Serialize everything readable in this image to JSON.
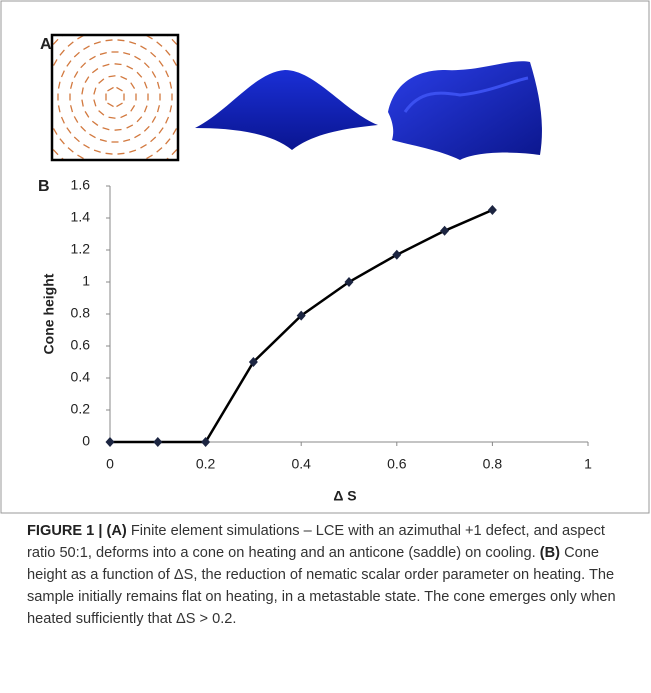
{
  "panels": {
    "a": {
      "label": "A"
    },
    "b": {
      "label": "B"
    }
  },
  "chart_data": {
    "type": "line",
    "x": [
      0,
      0.1,
      0.2,
      0.3,
      0.4,
      0.5,
      0.6,
      0.7,
      0.8
    ],
    "series": [
      {
        "name": "Cone height",
        "color": "#000000",
        "marker_color": "#1c2541",
        "values": [
          0,
          0,
          0,
          0.5,
          0.79,
          1.0,
          1.17,
          1.32,
          1.45
        ]
      }
    ],
    "xlabel": "Δ S",
    "ylabel": "Cone height",
    "xlim": [
      0,
      1
    ],
    "ylim": [
      0,
      1.6
    ],
    "xticks": [
      0,
      0.2,
      0.4,
      0.6,
      0.8,
      1
    ],
    "yticks": [
      0,
      0.2,
      0.4,
      0.6,
      0.8,
      1,
      1.2,
      1.4,
      1.6
    ],
    "grid": false
  },
  "caption": {
    "figure_label": "FIGURE 1 |",
    "parts": [
      {
        "label": "(A)",
        "text": "Finite element simulations – LCE with an azimuthal +1 defect, and aspect ratio 50:1, deforms into a cone on heating and an anticone (saddle) on cooling."
      },
      {
        "label": "(B)",
        "text": "Cone height as a function of ΔS, the reduction of nematic scalar order parameter on heating. The sample initially remains flat on heating, in a metastable state. The cone emerges only when heated sufficiently that ΔS > 0.2."
      }
    ]
  }
}
